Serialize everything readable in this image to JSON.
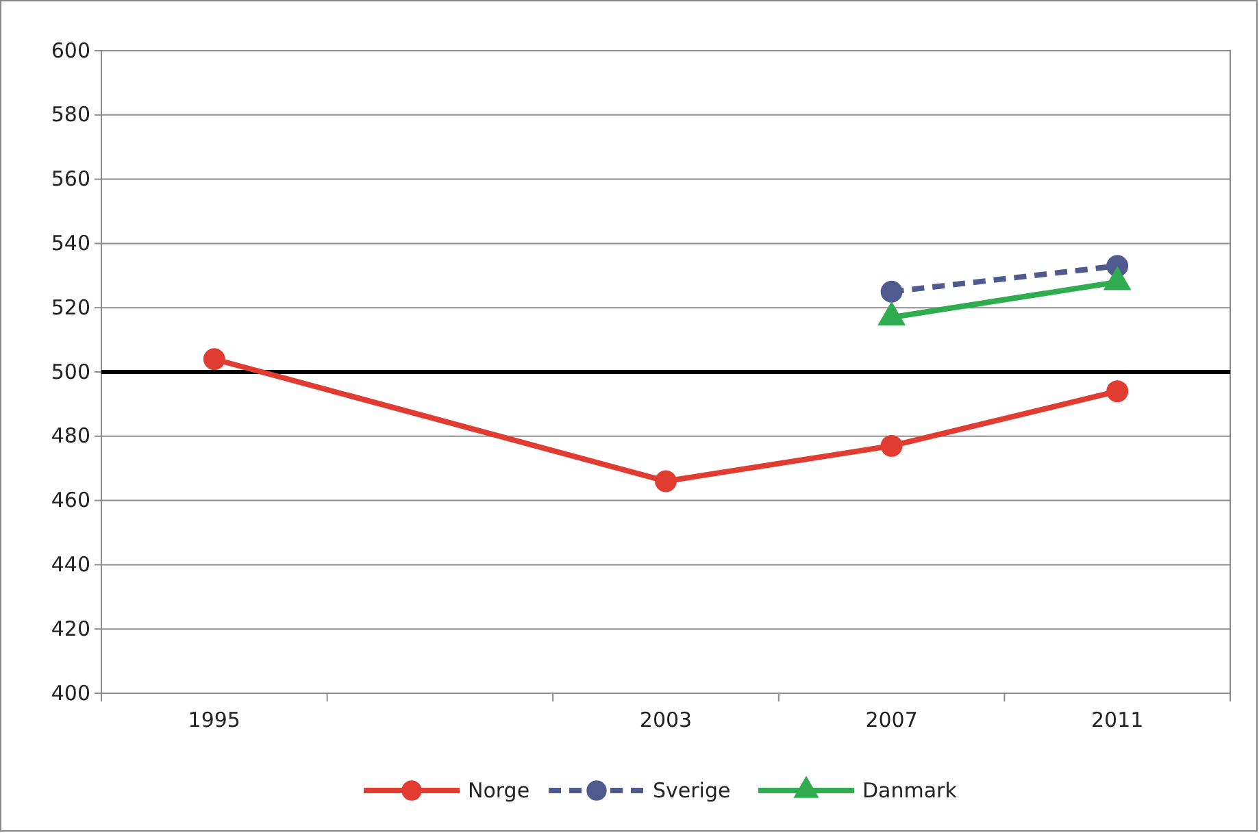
{
  "chart_data": {
    "type": "line",
    "categories": [
      "1995",
      null,
      "2003",
      "2007",
      "2011"
    ],
    "series": [
      {
        "name": "Norge",
        "color": "#e03c31",
        "values": [
          504,
          null,
          466,
          477,
          494
        ],
        "marker": "circle",
        "line_style": "solid"
      },
      {
        "name": "Sverige",
        "color": "#4f5b8f",
        "values": [
          null,
          null,
          null,
          525,
          533
        ],
        "marker": "circle",
        "line_style": "dashed"
      },
      {
        "name": "Danmark",
        "color": "#2eac4f",
        "values": [
          null,
          null,
          null,
          517,
          528
        ],
        "marker": "triangle",
        "line_style": "solid"
      }
    ],
    "ylim": [
      400,
      600
    ],
    "yticks": [
      400,
      420,
      440,
      460,
      480,
      500,
      520,
      540,
      560,
      580,
      600
    ],
    "grid": "y",
    "legend": "bottom",
    "ref_lines": [
      {
        "axis": "y",
        "value": 500,
        "color": "#000000"
      }
    ]
  }
}
